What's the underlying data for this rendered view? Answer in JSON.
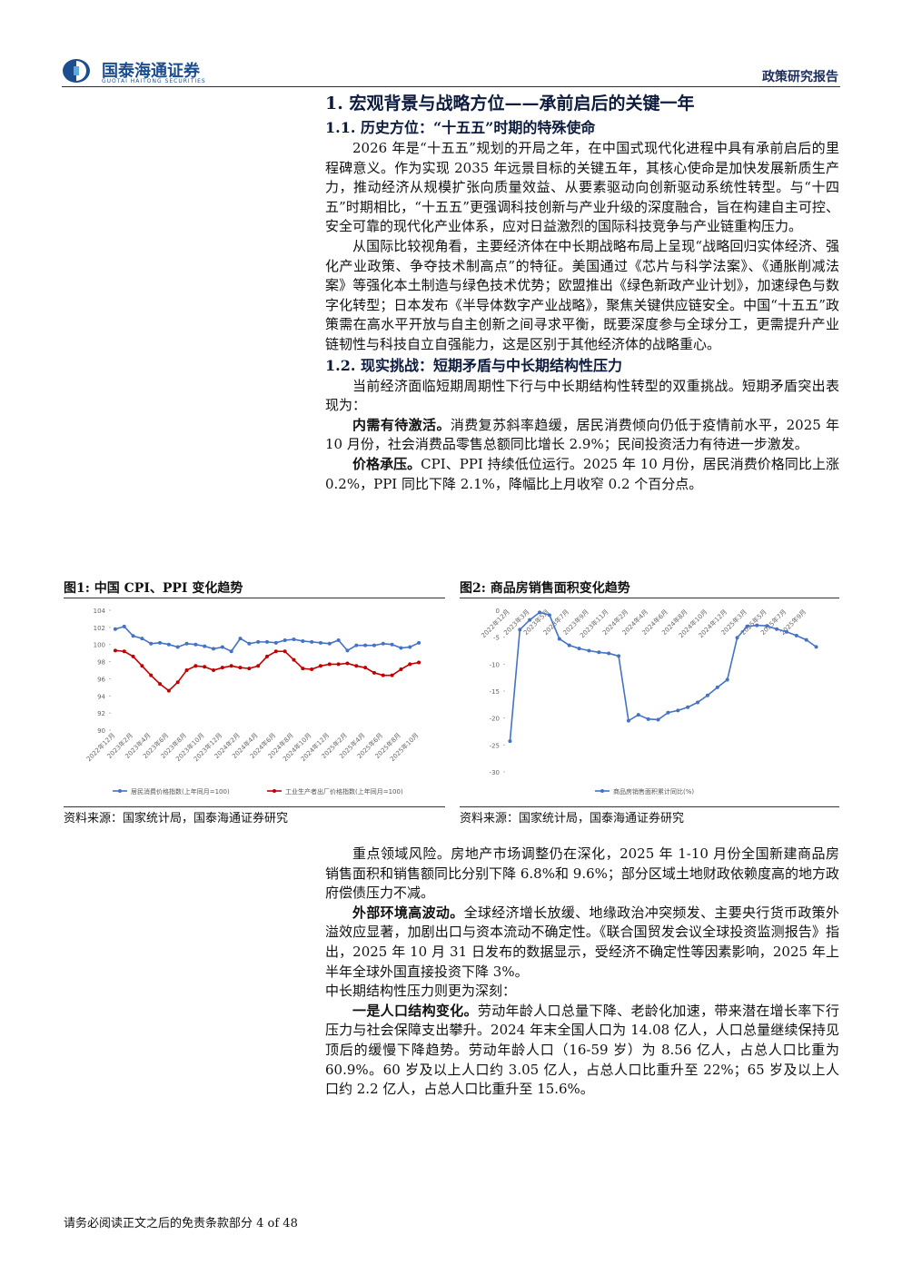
{
  "header": {
    "brand": "国泰海通证券",
    "brand_en": "GUOTAI HAITONG SECURITIES",
    "report_type": "政策研究报告"
  },
  "text_top": [
    {
      "kind": "h1",
      "text": "1.  宏观背景与战略方位——承前启后的关键一年"
    },
    {
      "kind": "h2",
      "text": "1.1.  历史方位：“十五五”时期的特殊使命"
    },
    {
      "kind": "p",
      "text": "2026 年是“十五五”规划的开局之年，在中国式现代化进程中具有承前启后的里程碑意义。作为实现 2035 年远景目标的关键五年，其核心使命是加快发展新质生产力，推动经济从规模扩张向质量效益、从要素驱动向创新驱动系统性转型。与“十四五”时期相比，“十五五”更强调科技创新与产业升级的深度融合，旨在构建自主可控、安全可靠的现代化产业体系，应对日益激烈的国际科技竞争与产业链重构压力。"
    },
    {
      "kind": "p",
      "text": "从国际比较视角看，主要经济体在中长期战略布局上呈现“战略回归实体经济、强化产业政策、争夺技术制高点”的特征。美国通过《芯片与科学法案》、《通胀削减法案》等强化本土制造与绿色技术优势；欧盟推出《绿色新政产业计划》，加速绿色与数字化转型；日本发布《半导体数字产业战略》，聚焦关键供应链安全。中国“十五五”政策需在高水平开放与自主创新之间寻求平衡，既要深度参与全球分工，更需提升产业链韧性与科技自立自强能力，这是区别于其他经济体的战略重心。"
    },
    {
      "kind": "h2",
      "text": "1.2.  现实挑战：短期矛盾与中长期结构性压力"
    },
    {
      "kind": "p",
      "text": "当前经济面临短期周期性下行与中长期结构性转型的双重挑战。短期矛盾突出表现为："
    },
    {
      "kind": "p",
      "lead": "内需有待激活。",
      "text": "消费复苏斜率趋缓，居民消费倾向仍低于疫情前水平，2025 年 10 月份，社会消费品零售总额同比增长 2.9%；民间投资活力有待进一步激发。"
    },
    {
      "kind": "p",
      "lead": "价格承压。",
      "text": "CPI、PPI 持续低位运行。2025 年 10 月份，居民消费价格同比上涨 0.2%，PPI 同比下降 2.1%，降幅比上月收窄 0.2 个百分点。"
    }
  ],
  "figures": [
    {
      "caption": "图1: 中国 CPI、PPI 变化趋势",
      "source": "资料来源：国家统计局，国泰海通证券研究",
      "chart": {
        "type": "line",
        "categories": [
          "2022年12月",
          null,
          "2023年2月",
          null,
          "2023年4月",
          null,
          "2023年6月",
          null,
          "2023年8月",
          null,
          "2023年10月",
          null,
          "2023年12月",
          null,
          "2024年2月",
          null,
          "2024年4月",
          null,
          "2024年6月",
          null,
          "2024年8月",
          null,
          "2024年10月",
          null,
          "2024年12月",
          null,
          "2025年2月",
          null,
          "2025年4月",
          null,
          "2025年6月",
          null,
          "2025年8月",
          null,
          "2025年10月"
        ],
        "series": [
          {
            "name": "居民消费价格指数(上年同月=100)",
            "color": "#4472c4",
            "values": [
              101.8,
              102.1,
              101.0,
              100.7,
              100.1,
              100.2,
              100.0,
              99.7,
              100.1,
              100.0,
              99.8,
              99.5,
              99.7,
              99.2,
              100.7,
              100.1,
              100.3,
              100.3,
              100.2,
              100.5,
              100.6,
              100.4,
              100.3,
              100.2,
              100.1,
              100.5,
              99.3,
              99.9,
              99.9,
              99.9,
              100.1,
              100.0,
              99.6,
              99.7,
              100.2
            ]
          },
          {
            "name": "工业生产者出厂价格指数(上年同月=100)",
            "color": "#c00000",
            "values": [
              99.3,
              99.2,
              98.6,
              97.5,
              96.4,
              95.4,
              94.6,
              95.6,
              97.0,
              97.5,
              97.4,
              97.0,
              97.3,
              97.5,
              97.3,
              97.2,
              97.5,
              98.6,
              99.2,
              99.2,
              98.2,
              97.2,
              97.1,
              97.5,
              97.7,
              97.7,
              97.8,
              97.5,
              97.3,
              96.7,
              96.4,
              96.4,
              97.1,
              97.7,
              97.9
            ]
          }
        ],
        "ylim": [
          90,
          104
        ],
        "yticks": [
          90,
          92,
          94,
          96,
          98,
          100,
          102,
          104
        ],
        "grid": false,
        "legend": "bottom"
      }
    },
    {
      "caption": "图2: 商品房销售面积变化趋势",
      "source": "资料来源：国家统计局，国泰海通证券研究",
      "chart": {
        "type": "line",
        "categories": [
          "2022年12月",
          null,
          "2023年3月",
          null,
          "2023年5月",
          null,
          "2023年7月",
          null,
          "2023年9月",
          null,
          "2023年11月",
          null,
          "2024年2月",
          null,
          "2024年4月",
          null,
          "2024年6月",
          null,
          "2024年8月",
          null,
          "2024年10月",
          null,
          "2024年12月",
          null,
          "2025年3月",
          null,
          "2025年5月",
          null,
          "2025年7月",
          null,
          "2025年9月",
          null
        ],
        "series": [
          {
            "name": "商品房销售面积累计同比(%)",
            "color": "#4472c4",
            "values": [
              -24.3,
              -3.6,
              -1.8,
              -0.4,
              -0.9,
              -5.3,
              -6.5,
              -7.1,
              -7.5,
              -7.8,
              -8.0,
              -8.5,
              -20.5,
              -19.4,
              -20.2,
              -20.3,
              -19.0,
              -18.6,
              -18.0,
              -17.1,
              -15.8,
              -14.3,
              -12.9,
              -5.1,
              -3.0,
              -2.8,
              -2.9,
              -3.5,
              -4.0,
              -4.7,
              -5.5,
              -6.8
            ]
          }
        ],
        "ylim": [
          -30,
          0
        ],
        "yticks": [
          -30,
          -25,
          -20,
          -15,
          -10,
          -5,
          0
        ],
        "grid": false,
        "legend": "bottom",
        "xlabels": "top"
      }
    }
  ],
  "text_bottom": [
    {
      "kind": "p",
      "text": "重点领域风险。房地产市场调整仍在深化，2025 年 1-10 月份全国新建商品房销售面积和销售额同比分别下降 6.8%和 9.6%；部分区域土地财政依赖度高的地方政府偿债压力不减。"
    },
    {
      "kind": "p",
      "lead": "外部环境高波动。",
      "text": "全球经济增长放缓、地缘政治冲突频发、主要央行货币政策外溢效应显著，加剧出口与资本流动不确定性。《联合国贸发会议全球投资监测报告》指出，2025 年 10 月 31 日发布的数据显示，受经济不确定性等因素影响，2025 年上半年全球外国直接投资下降 3%。"
    },
    {
      "kind": "p0",
      "text": "中长期结构性压力则更为深刻："
    },
    {
      "kind": "p",
      "lead": "一是人口结构变化。",
      "text": "劳动年龄人口总量下降、老龄化加速，带来潜在增长率下行压力与社会保障支出攀升。2024 年末全国人口为 14.08 亿人，人口总量继续保持见顶后的缓慢下降趋势。劳动年龄人口（16-59 岁）为 8.56 亿人，占总人口比重为 60.9%。60 岁及以上人口约 3.05 亿人，占总人口比重升至 22%；65 岁及以上人口约 2.2 亿人，占总人口比重升至 15.6%。"
    }
  ],
  "footer": {
    "text": "请务必阅读正文之后的免责条款部分 4 of 48"
  }
}
